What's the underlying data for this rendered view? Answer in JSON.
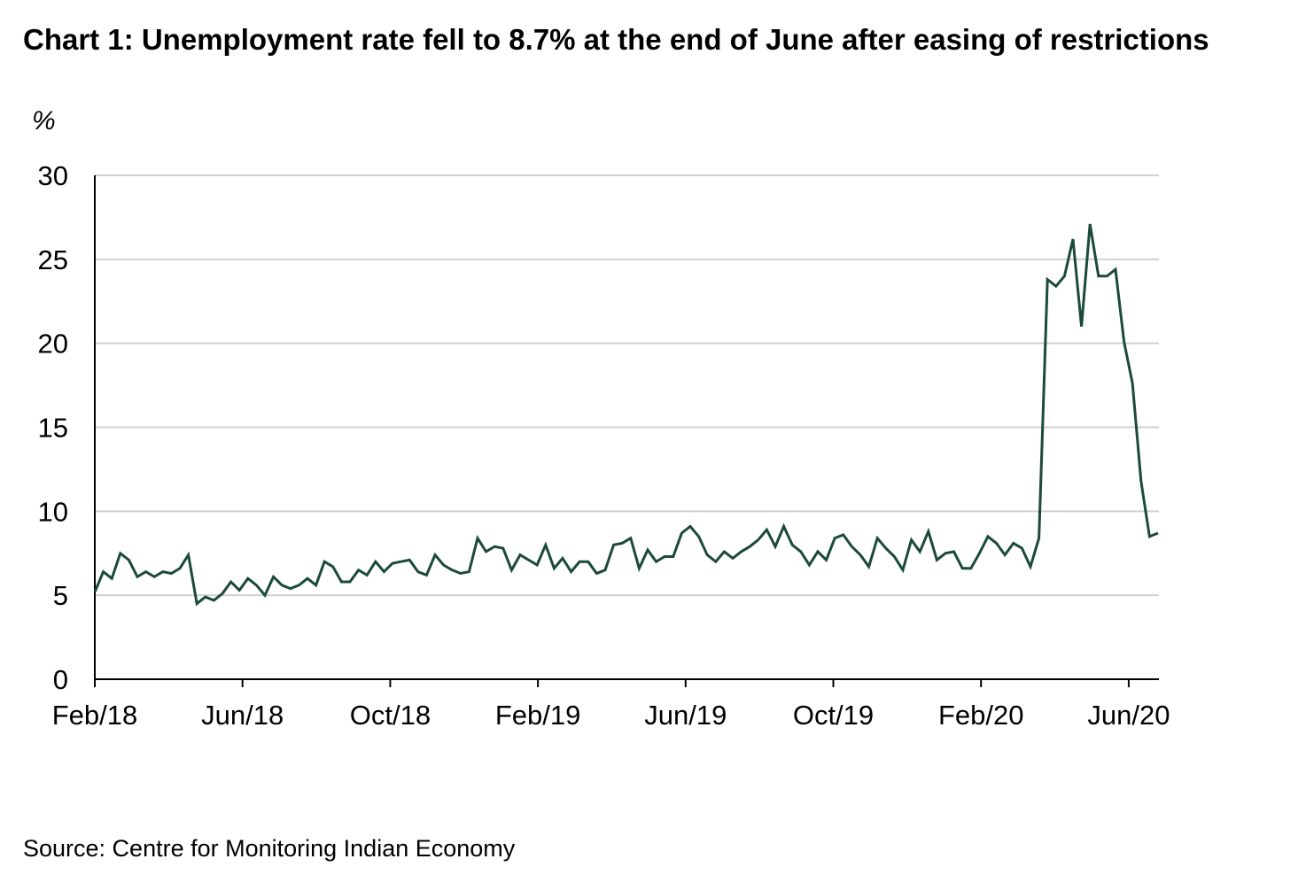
{
  "chart_data": {
    "type": "line",
    "title": "Chart 1: Unemployment rate fell to 8.7% at the end of June after easing of restrictions",
    "ylabel": "%",
    "xlabel": "",
    "ylim": [
      0,
      30
    ],
    "yticks": [
      0,
      5,
      10,
      15,
      20,
      25,
      30
    ],
    "grid": true,
    "x_tick_labels": [
      "Feb/18",
      "Jun/18",
      "Oct/18",
      "Feb/19",
      "Jun/19",
      "Oct/19",
      "Feb/20",
      "Jun/20"
    ],
    "x_frequency": "weekly",
    "series": [
      {
        "name": "Unemployment rate",
        "color": "#1b4a38",
        "values": [
          5.2,
          6.4,
          6.0,
          7.5,
          7.1,
          6.1,
          6.4,
          6.1,
          6.4,
          6.3,
          6.6,
          7.4,
          4.5,
          4.9,
          4.7,
          5.1,
          5.8,
          5.3,
          6.0,
          5.6,
          5.0,
          6.1,
          5.6,
          5.4,
          5.6,
          6.0,
          5.6,
          7.0,
          6.7,
          5.8,
          5.8,
          6.5,
          6.2,
          7.0,
          6.4,
          6.9,
          7.0,
          7.1,
          6.4,
          6.2,
          7.4,
          6.8,
          6.5,
          6.3,
          6.4,
          8.4,
          7.6,
          7.9,
          7.8,
          6.5,
          7.4,
          7.1,
          6.8,
          8.0,
          6.6,
          7.2,
          6.4,
          7.0,
          7.0,
          6.3,
          6.5,
          8.0,
          8.1,
          8.4,
          6.6,
          7.7,
          7.0,
          7.3,
          7.3,
          8.7,
          9.1,
          8.5,
          7.4,
          7.0,
          7.6,
          7.2,
          7.6,
          7.9,
          8.3,
          8.9,
          7.9,
          9.1,
          8.0,
          7.6,
          6.8,
          7.6,
          7.1,
          8.4,
          8.6,
          7.9,
          7.4,
          6.7,
          8.4,
          7.8,
          7.3,
          6.5,
          8.3,
          7.6,
          8.8,
          7.1,
          7.5,
          7.6,
          6.6,
          6.6,
          7.5,
          8.5,
          8.1,
          7.4,
          8.1,
          7.8,
          6.7,
          8.4,
          23.8,
          23.4,
          24.0,
          26.2,
          21.0,
          27.1,
          24.0,
          24.0,
          24.4,
          20.1,
          17.6,
          11.8,
          8.5,
          8.7
        ]
      }
    ]
  },
  "source": "Source: Centre for Monitoring Indian Economy"
}
